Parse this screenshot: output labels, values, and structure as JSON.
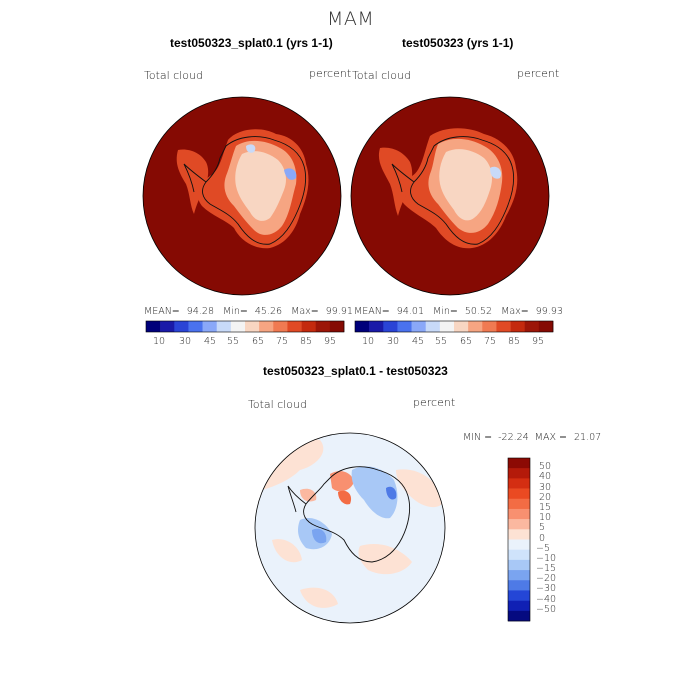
{
  "season": "MAM",
  "panels": [
    {
      "title": "test050323_splat0.1 (yrs 1-1)",
      "field": "Total cloud",
      "units": "percent",
      "stats": {
        "mean_label": "MEAN=",
        "mean": "94.28",
        "min_label": "Min=",
        "min": "45.26",
        "max_label": "Max=",
        "max": "99.91"
      }
    },
    {
      "title": "test050323 (yrs 1-1)",
      "field": "Total cloud",
      "units": "percent",
      "stats": {
        "mean_label": "MEAN=",
        "mean": "94.01",
        "min_label": "Min=",
        "min": "50.52",
        "max_label": "Max=",
        "max": "99.93"
      }
    }
  ],
  "abs_colorbar": {
    "tick_labels": [
      "10",
      "30",
      "45",
      "55",
      "65",
      "75",
      "85",
      "95"
    ],
    "colors": [
      "#00007a",
      "#1a1aa8",
      "#2a44d6",
      "#4a72ee",
      "#8aa8f8",
      "#c8daf8",
      "#f4f4f4",
      "#f8d6c2",
      "#f6a582",
      "#f07a52",
      "#e04a25",
      "#c42a0e",
      "#9c1608",
      "#850a03"
    ]
  },
  "diff_panel": {
    "title": "test050323_splat0.1 - test050323",
    "field": "Total cloud",
    "units": "percent",
    "stats": {
      "min_label": "MIN =",
      "min": "-22.24",
      "max_label": "MAX =",
      "max": "21.07"
    },
    "colorbar": {
      "levels": [
        "50",
        "40",
        "30",
        "20",
        "15",
        "10",
        "5",
        "0",
        "−5",
        "−10",
        "−15",
        "−20",
        "−30",
        "−40",
        "−50"
      ],
      "colors": [
        "#8c0a04",
        "#b41a0a",
        "#d42e12",
        "#ea4a22",
        "#f36c44",
        "#f89070",
        "#fbb8a0",
        "#fde2d4",
        "#eaf2fb",
        "#cfe3fb",
        "#a8c8f6",
        "#7aa4f0",
        "#4e7ae6",
        "#2446d6",
        "#1020b4",
        "#050a80"
      ]
    }
  }
}
